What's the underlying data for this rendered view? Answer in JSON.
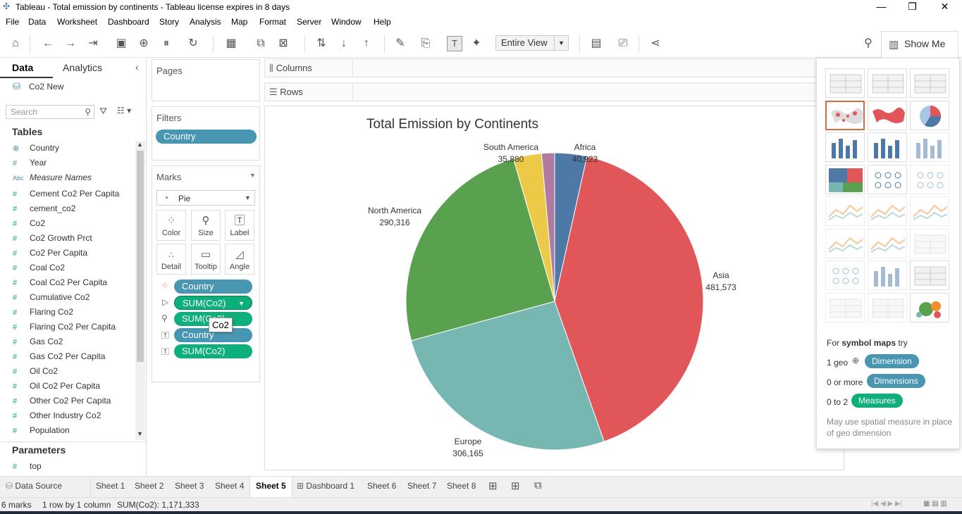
{
  "window": {
    "title": "Tableau - Total emission by continents - Tableau license expires in 8 days",
    "controls": [
      "—",
      "❐",
      "✕"
    ]
  },
  "menu": [
    "File",
    "Data",
    "Worksheet",
    "Dashboard",
    "Story",
    "Analysis",
    "Map",
    "Format",
    "Server",
    "Window",
    "Help"
  ],
  "toolbar": {
    "view_mode": "Entire View",
    "show_me_label": "Show Me"
  },
  "data_panel": {
    "tab_data": "Data",
    "tab_analytics": "Analytics",
    "datasource": "Co2 New",
    "search_placeholder": "Search",
    "tables_heading": "Tables",
    "fields": [
      {
        "icon": "globe",
        "name": "Country"
      },
      {
        "icon": "#",
        "name": "Year"
      },
      {
        "icon": "Abc",
        "name": "Measure Names"
      },
      {
        "icon": "#",
        "name": "Cement Co2 Per Capita"
      },
      {
        "icon": "#",
        "name": "cement_co2"
      },
      {
        "icon": "#",
        "name": "Co2"
      },
      {
        "icon": "#",
        "name": "Co2 Growth Prct"
      },
      {
        "icon": "#",
        "name": "Co2 Per Capita"
      },
      {
        "icon": "#",
        "name": "Coal Co2"
      },
      {
        "icon": "#",
        "name": "Coal Co2 Per Capita"
      },
      {
        "icon": "#",
        "name": "Cumulative Co2"
      },
      {
        "icon": "#",
        "name": "Flaring Co2"
      },
      {
        "icon": "#",
        "name": "Flaring Co2 Per Capita"
      },
      {
        "icon": "#",
        "name": "Gas Co2"
      },
      {
        "icon": "#",
        "name": "Gas Co2 Per Capita"
      },
      {
        "icon": "#",
        "name": "Oil Co2"
      },
      {
        "icon": "#",
        "name": "Oil Co2 Per Capita"
      },
      {
        "icon": "#",
        "name": "Other Co2 Per Capita"
      },
      {
        "icon": "#",
        "name": "Other Industry Co2"
      },
      {
        "icon": "#",
        "name": "Population"
      }
    ],
    "parameters_heading": "Parameters",
    "parameters": [
      {
        "icon": "#",
        "name": "top"
      }
    ]
  },
  "shelves": {
    "pages": "Pages",
    "filters": "Filters",
    "filter_pill": "Country",
    "marks": "Marks",
    "mark_type": "Pie",
    "mark_buttons": [
      "Color",
      "Size",
      "Label",
      "Detail",
      "Tooltip",
      "Angle"
    ],
    "mark_pills": [
      {
        "label": "Country",
        "kind": "dimension",
        "role": "color"
      },
      {
        "label": "SUM(Co2)",
        "kind": "measure",
        "role": "angle"
      },
      {
        "label": "SUM(Co2)",
        "kind": "measure",
        "role": "size"
      },
      {
        "label": "Country",
        "kind": "dimension",
        "role": "label"
      },
      {
        "label": "SUM(Co2)",
        "kind": "measure",
        "role": "label"
      }
    ],
    "tooltip_text": "Co2",
    "columns": "Columns",
    "rows": "Rows"
  },
  "chart_data": {
    "type": "pie",
    "title": "Total  Emission by Continents",
    "slices": [
      {
        "label": "Africa",
        "value": 40923,
        "display": "40,923",
        "color": "#4e79a7"
      },
      {
        "label": "Asia",
        "value": 481573,
        "display": "481,573",
        "color": "#e15759"
      },
      {
        "label": "Europe",
        "value": 306165,
        "display": "306,165",
        "color": "#76b7b2"
      },
      {
        "label": "North America",
        "value": 290316,
        "display": "290,316",
        "color": "#59a14f"
      },
      {
        "label": "South America",
        "value": 35880,
        "display": "35,880",
        "color": "#edc948"
      },
      {
        "label": "",
        "value": 16476,
        "display": "",
        "color": "#b07aa1"
      }
    ]
  },
  "show_me": {
    "hint_prefix": "For",
    "hint_bold": "symbol maps",
    "hint_suffix": "try",
    "req1_label": "1 geo",
    "req1_pill": "Dimension",
    "req2_label": "0 or more",
    "req2_pill": "Dimensions",
    "req3_label": "0 to 2",
    "req3_pill": "Measures",
    "note": "May use spatial measure in place of geo dimension"
  },
  "sheet_tabs": [
    "Data Source",
    "Sheet 1",
    "Sheet 2",
    "Sheet 3",
    "Sheet 4",
    "Sheet 5",
    "Dashboard 1",
    "Sheet 6",
    "Sheet 7",
    "Sheet 8"
  ],
  "active_tab": "Sheet 5",
  "status": {
    "marks": "6 marks",
    "dims": "1 row by 1 column",
    "sum": "SUM(Co2): 1,171,333"
  },
  "colors": {
    "dimension_pill": "#4996b2",
    "measure_pill": "#0daf7b",
    "selected_thumb": "#d86b3f"
  }
}
